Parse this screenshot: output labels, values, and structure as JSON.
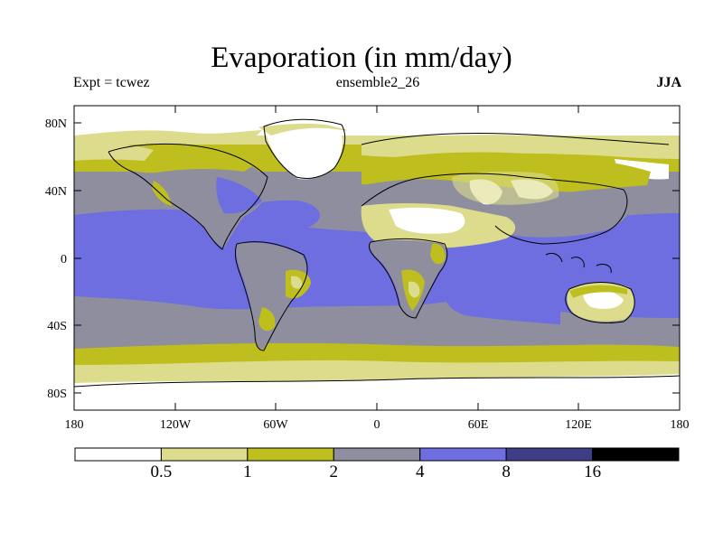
{
  "title": "Evaporation (in mm/day)",
  "experiment": "Expt = tcwez",
  "run": "ensemble2_26",
  "season": "JJA",
  "map": {
    "lat_labels": [
      "80N",
      "40N",
      "0",
      "40S",
      "80S"
    ],
    "lon_labels": [
      "180",
      "120W",
      "60W",
      "0",
      "60E",
      "120E",
      "180"
    ]
  },
  "colorbar": {
    "labels": [
      "0.5",
      "1",
      "2",
      "4",
      "8",
      "16"
    ],
    "colors": [
      "#ffffff",
      "#dcdc8c",
      "#bebe1e",
      "#8e8e9e",
      "#6e6ee0",
      "#3e3e86",
      "#000000"
    ]
  },
  "palette": {
    "white": "#ffffff",
    "pale": "#dcdc8c",
    "olive": "#bebe1e",
    "gray": "#8e8e9e",
    "blue": "#6e6ee0",
    "dark": "#3e3e86",
    "black": "#000000"
  }
}
